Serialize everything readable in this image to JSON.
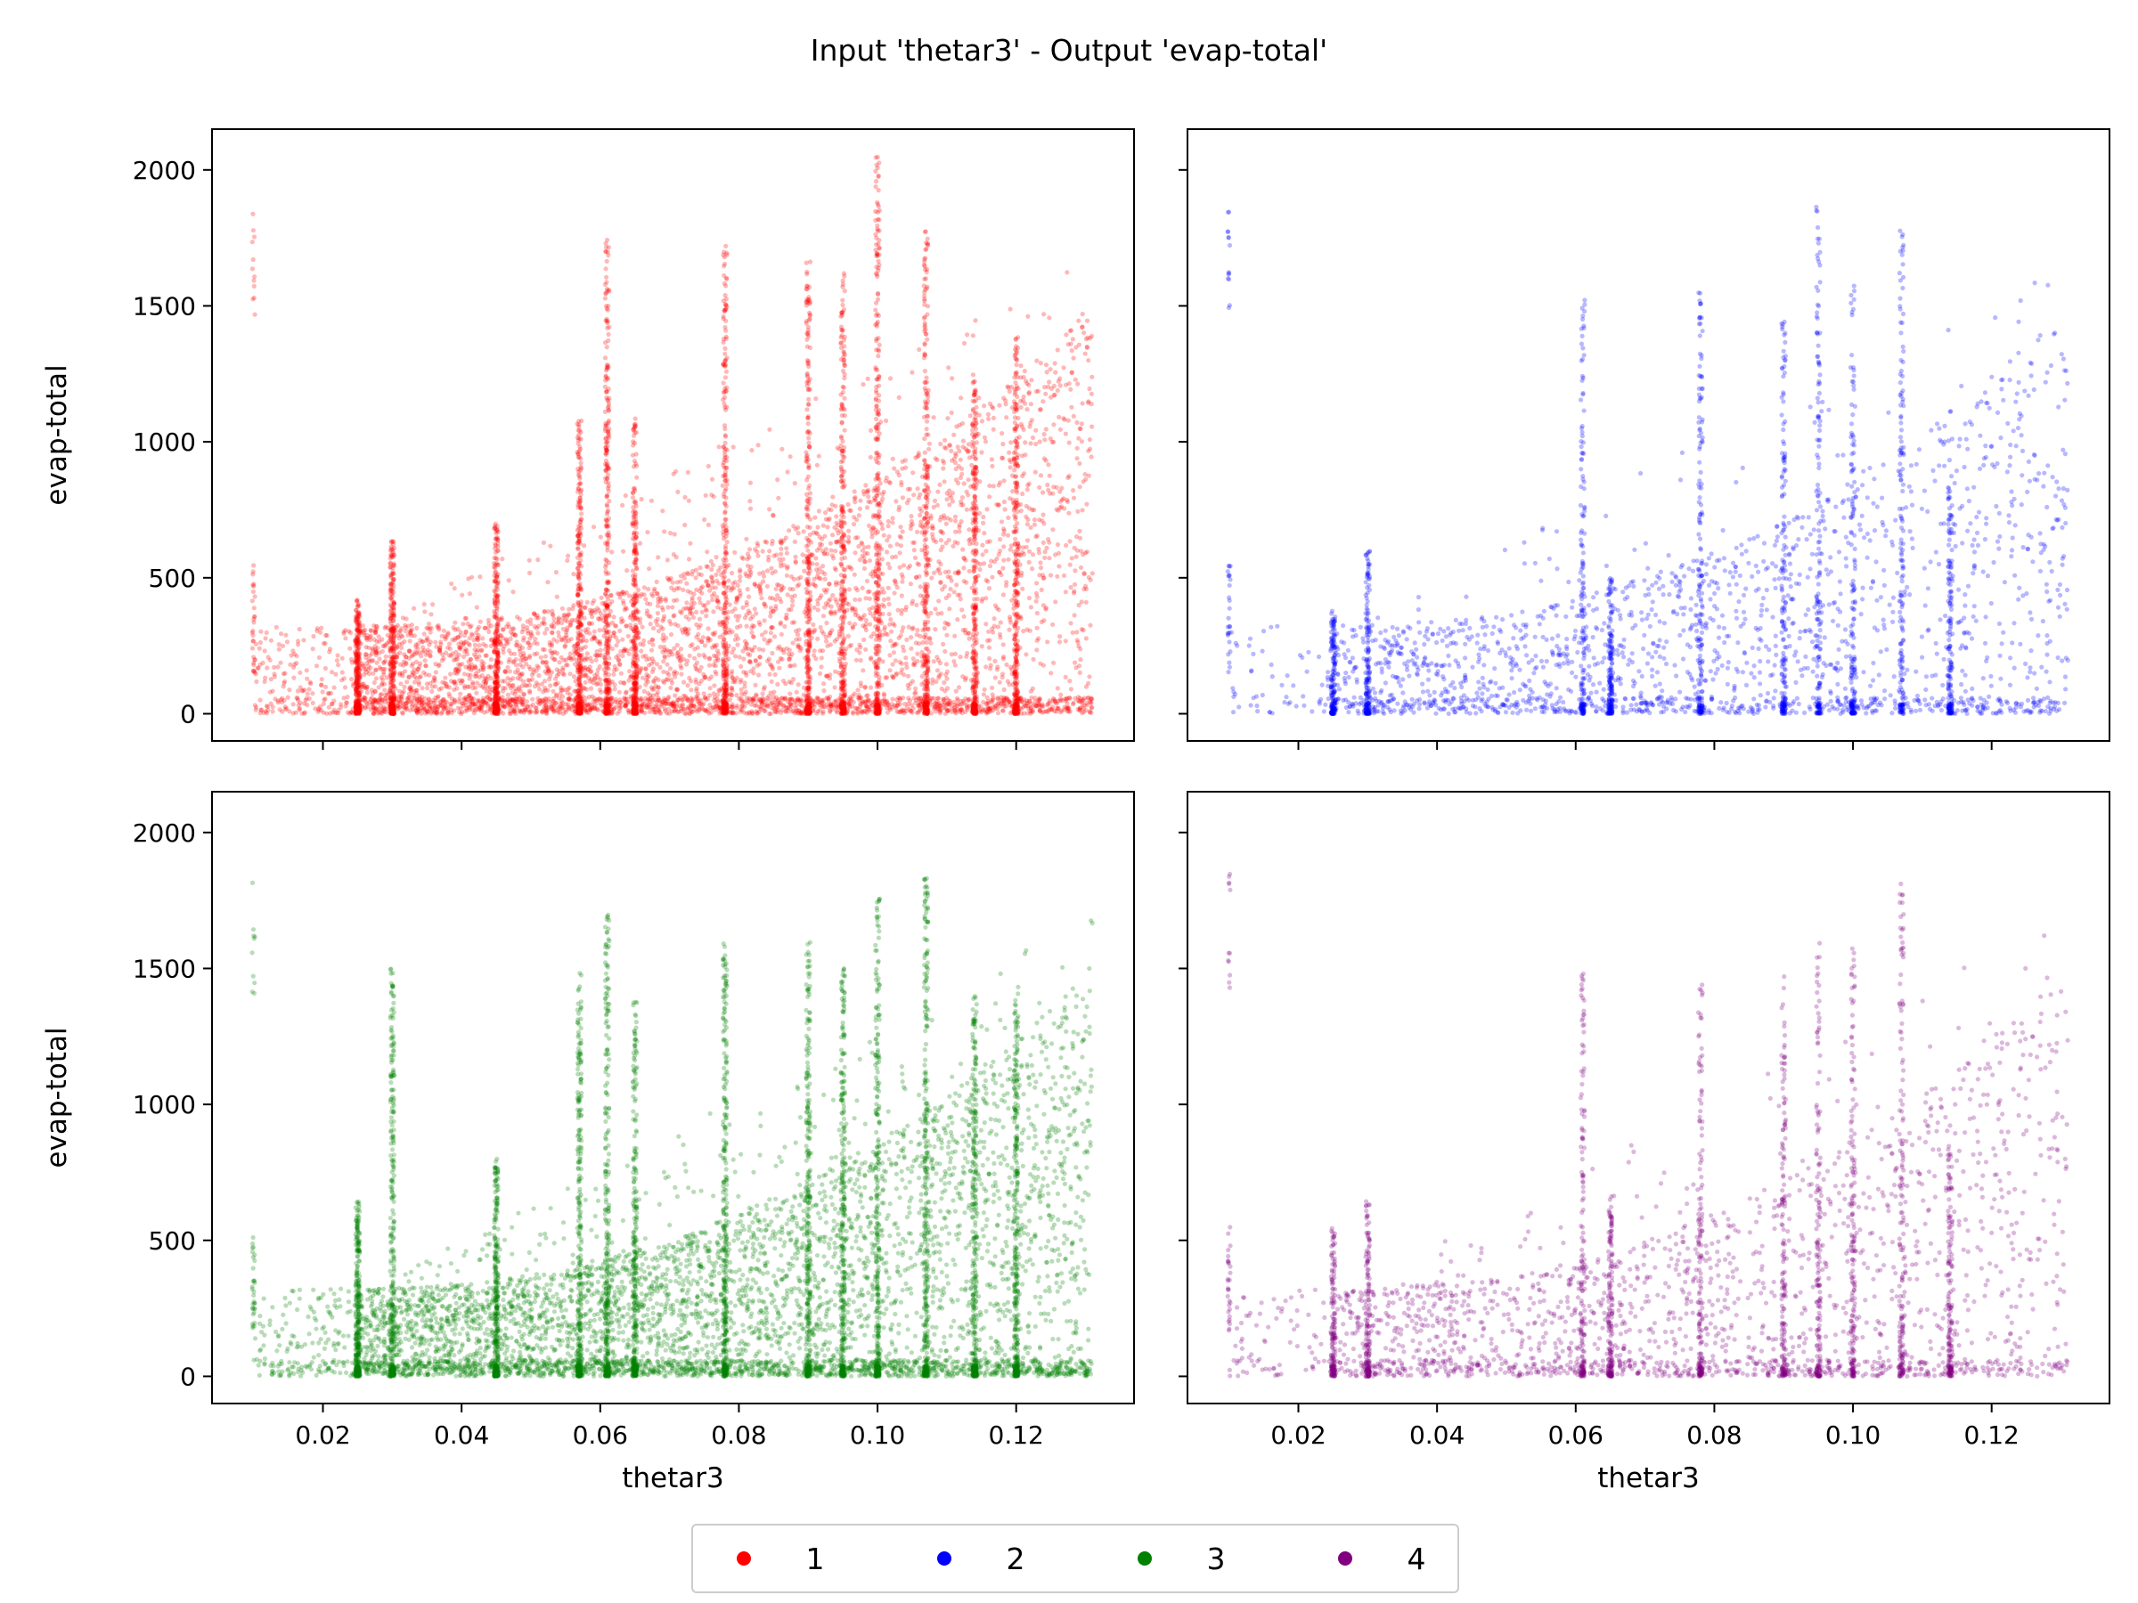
{
  "figure": {
    "title": "Input 'thetar3' - Output 'evap-total'"
  },
  "chart_data": [
    {
      "type": "scatter",
      "panel": "top-left",
      "series_name": "1",
      "color": "#ff0000",
      "xlabel": "",
      "ylabel": "evap-total",
      "xlim": [
        0.004,
        0.137
      ],
      "ylim": [
        -100,
        2150
      ],
      "xticks": [
        "0.02",
        "0.04",
        "0.06",
        "0.08",
        "0.10",
        "0.12"
      ],
      "xtick_values": [
        0.02,
        0.04,
        0.06,
        0.08,
        0.1,
        0.12
      ],
      "yticks": [
        "0",
        "500",
        "1000",
        "1500",
        "2000"
      ],
      "ytick_values": [
        0,
        500,
        1000,
        1500,
        2000
      ],
      "show_xtick_labels": false,
      "show_ytick_labels": true,
      "column_x": [
        0.025,
        0.03,
        0.045,
        0.057,
        0.061,
        0.065,
        0.078,
        0.09,
        0.095,
        0.1,
        0.107,
        0.114,
        0.12
      ],
      "column_ymax": [
        420,
        640,
        700,
        1080,
        1750,
        1100,
        1720,
        1680,
        1620,
        2050,
        1780,
        1250,
        1400
      ],
      "approx_points": 9000
    },
    {
      "type": "scatter",
      "panel": "top-right",
      "series_name": "2",
      "color": "#0000ff",
      "xlabel": "",
      "ylabel": "",
      "xlim": [
        0.004,
        0.137
      ],
      "ylim": [
        -100,
        2150
      ],
      "xticks": [
        "0.02",
        "0.04",
        "0.06",
        "0.08",
        "0.10",
        "0.12"
      ],
      "xtick_values": [
        0.02,
        0.04,
        0.06,
        0.08,
        0.1,
        0.12
      ],
      "yticks": [
        "0",
        "500",
        "1000",
        "1500",
        "2000"
      ],
      "ytick_values": [
        0,
        500,
        1000,
        1500,
        2000
      ],
      "show_xtick_labels": false,
      "show_ytick_labels": false,
      "column_x": [
        0.025,
        0.03,
        0.061,
        0.065,
        0.078,
        0.09,
        0.095,
        0.1,
        0.107,
        0.114
      ],
      "column_ymax": [
        380,
        600,
        1550,
        500,
        1550,
        1450,
        1900,
        1600,
        1780,
        850
      ],
      "approx_points": 3500
    },
    {
      "type": "scatter",
      "panel": "bottom-left",
      "series_name": "3",
      "color": "#008000",
      "xlabel": "thetar3",
      "ylabel": "evap-total",
      "xlim": [
        0.004,
        0.137
      ],
      "ylim": [
        -100,
        2150
      ],
      "xticks": [
        "0.02",
        "0.04",
        "0.06",
        "0.08",
        "0.10",
        "0.12"
      ],
      "xtick_values": [
        0.02,
        0.04,
        0.06,
        0.08,
        0.1,
        0.12
      ],
      "yticks": [
        "0",
        "500",
        "1000",
        "1500",
        "2000"
      ],
      "ytick_values": [
        0,
        500,
        1000,
        1500,
        2000
      ],
      "show_xtick_labels": true,
      "show_ytick_labels": true,
      "column_x": [
        0.025,
        0.03,
        0.045,
        0.057,
        0.061,
        0.065,
        0.078,
        0.09,
        0.095,
        0.1,
        0.107,
        0.114,
        0.12
      ],
      "column_ymax": [
        650,
        1500,
        800,
        1500,
        1700,
        1400,
        1600,
        1600,
        1500,
        1780,
        1880,
        1400,
        1450
      ],
      "approx_points": 9000
    },
    {
      "type": "scatter",
      "panel": "bottom-right",
      "series_name": "4",
      "color": "#800080",
      "xlabel": "thetar3",
      "ylabel": "",
      "xlim": [
        0.004,
        0.137
      ],
      "ylim": [
        -100,
        2150
      ],
      "xticks": [
        "0.02",
        "0.04",
        "0.06",
        "0.08",
        "0.10",
        "0.12"
      ],
      "xtick_values": [
        0.02,
        0.04,
        0.06,
        0.08,
        0.1,
        0.12
      ],
      "yticks": [
        "0",
        "500",
        "1000",
        "1500",
        "2000"
      ],
      "ytick_values": [
        0,
        500,
        1000,
        1500,
        2000
      ],
      "show_xtick_labels": true,
      "show_ytick_labels": false,
      "column_x": [
        0.025,
        0.03,
        0.061,
        0.065,
        0.078,
        0.09,
        0.095,
        0.1,
        0.107,
        0.114
      ],
      "column_ymax": [
        550,
        650,
        1500,
        700,
        1500,
        1500,
        1600,
        1600,
        1850,
        850
      ],
      "approx_points": 3500
    }
  ],
  "legend": {
    "placement": "bottom-center",
    "items": [
      {
        "label": "1",
        "color": "#ff0000"
      },
      {
        "label": "2",
        "color": "#0000ff"
      },
      {
        "label": "3",
        "color": "#008000"
      },
      {
        "label": "4",
        "color": "#800080"
      }
    ]
  }
}
